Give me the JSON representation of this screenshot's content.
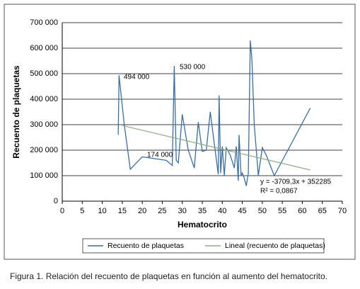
{
  "chart_data": {
    "type": "line",
    "xlabel": "Hematocrito",
    "ylabel": "Recuento de plaquetas",
    "series": [
      {
        "name": "Recuento de plaquetas",
        "color": "#3b6ea5",
        "x": [
          14,
          14.2,
          15.5,
          17,
          20,
          26,
          27.5,
          28,
          28.5,
          29,
          30,
          31.5,
          33,
          34,
          35,
          36,
          37,
          38,
          39,
          39.2,
          39.6,
          40,
          40.5,
          41,
          42,
          43,
          43.5,
          44,
          44.2,
          44.7,
          45,
          45.5,
          46,
          46.5,
          47,
          47.4,
          48,
          48.5,
          49,
          50,
          51,
          53,
          62
        ],
        "values": [
          260000,
          494000,
          300000,
          125000,
          174000,
          160000,
          140000,
          530000,
          160000,
          150000,
          340000,
          200000,
          130000,
          310000,
          195000,
          200000,
          350000,
          225000,
          105000,
          415000,
          110000,
          215000,
          100000,
          210000,
          180000,
          130000,
          215000,
          80000,
          260000,
          100000,
          110000,
          90000,
          60000,
          110000,
          630000,
          560000,
          300000,
          200000,
          100000,
          210000,
          180000,
          100000,
          365000
        ]
      },
      {
        "name": "Lineal (recuento de plaquetas)",
        "color": "#8fae82",
        "x": [
          15,
          62
        ],
        "values": [
          296645,
          122309
        ]
      }
    ],
    "annotations": [
      "494 000",
      "530 000",
      "174 000",
      "y = -3709,3x + 352285",
      "R² = 0,0867"
    ],
    "xlim": [
      0,
      70
    ],
    "xticks": [
      0,
      5,
      10,
      15,
      20,
      25,
      30,
      35,
      40,
      45,
      50,
      55,
      60,
      65,
      70
    ],
    "ylim": [
      0,
      700000
    ],
    "yticks": [
      0,
      {
        "value": 100000,
        "label": "100 000"
      },
      {
        "value": 200000,
        "label": "200 000"
      },
      {
        "value": 300000,
        "label": "300 000"
      },
      {
        "value": 400000,
        "label": "400 000"
      },
      {
        "value": 500000,
        "label": "500 000"
      },
      {
        "value": 600000,
        "label": "600 000"
      },
      {
        "value": 700000,
        "label": "700 000"
      }
    ],
    "grid": true,
    "legend": "bottom"
  },
  "caption": "Figura 1. Relación del recuento de plaquetas en función al aumento del hematocrito."
}
